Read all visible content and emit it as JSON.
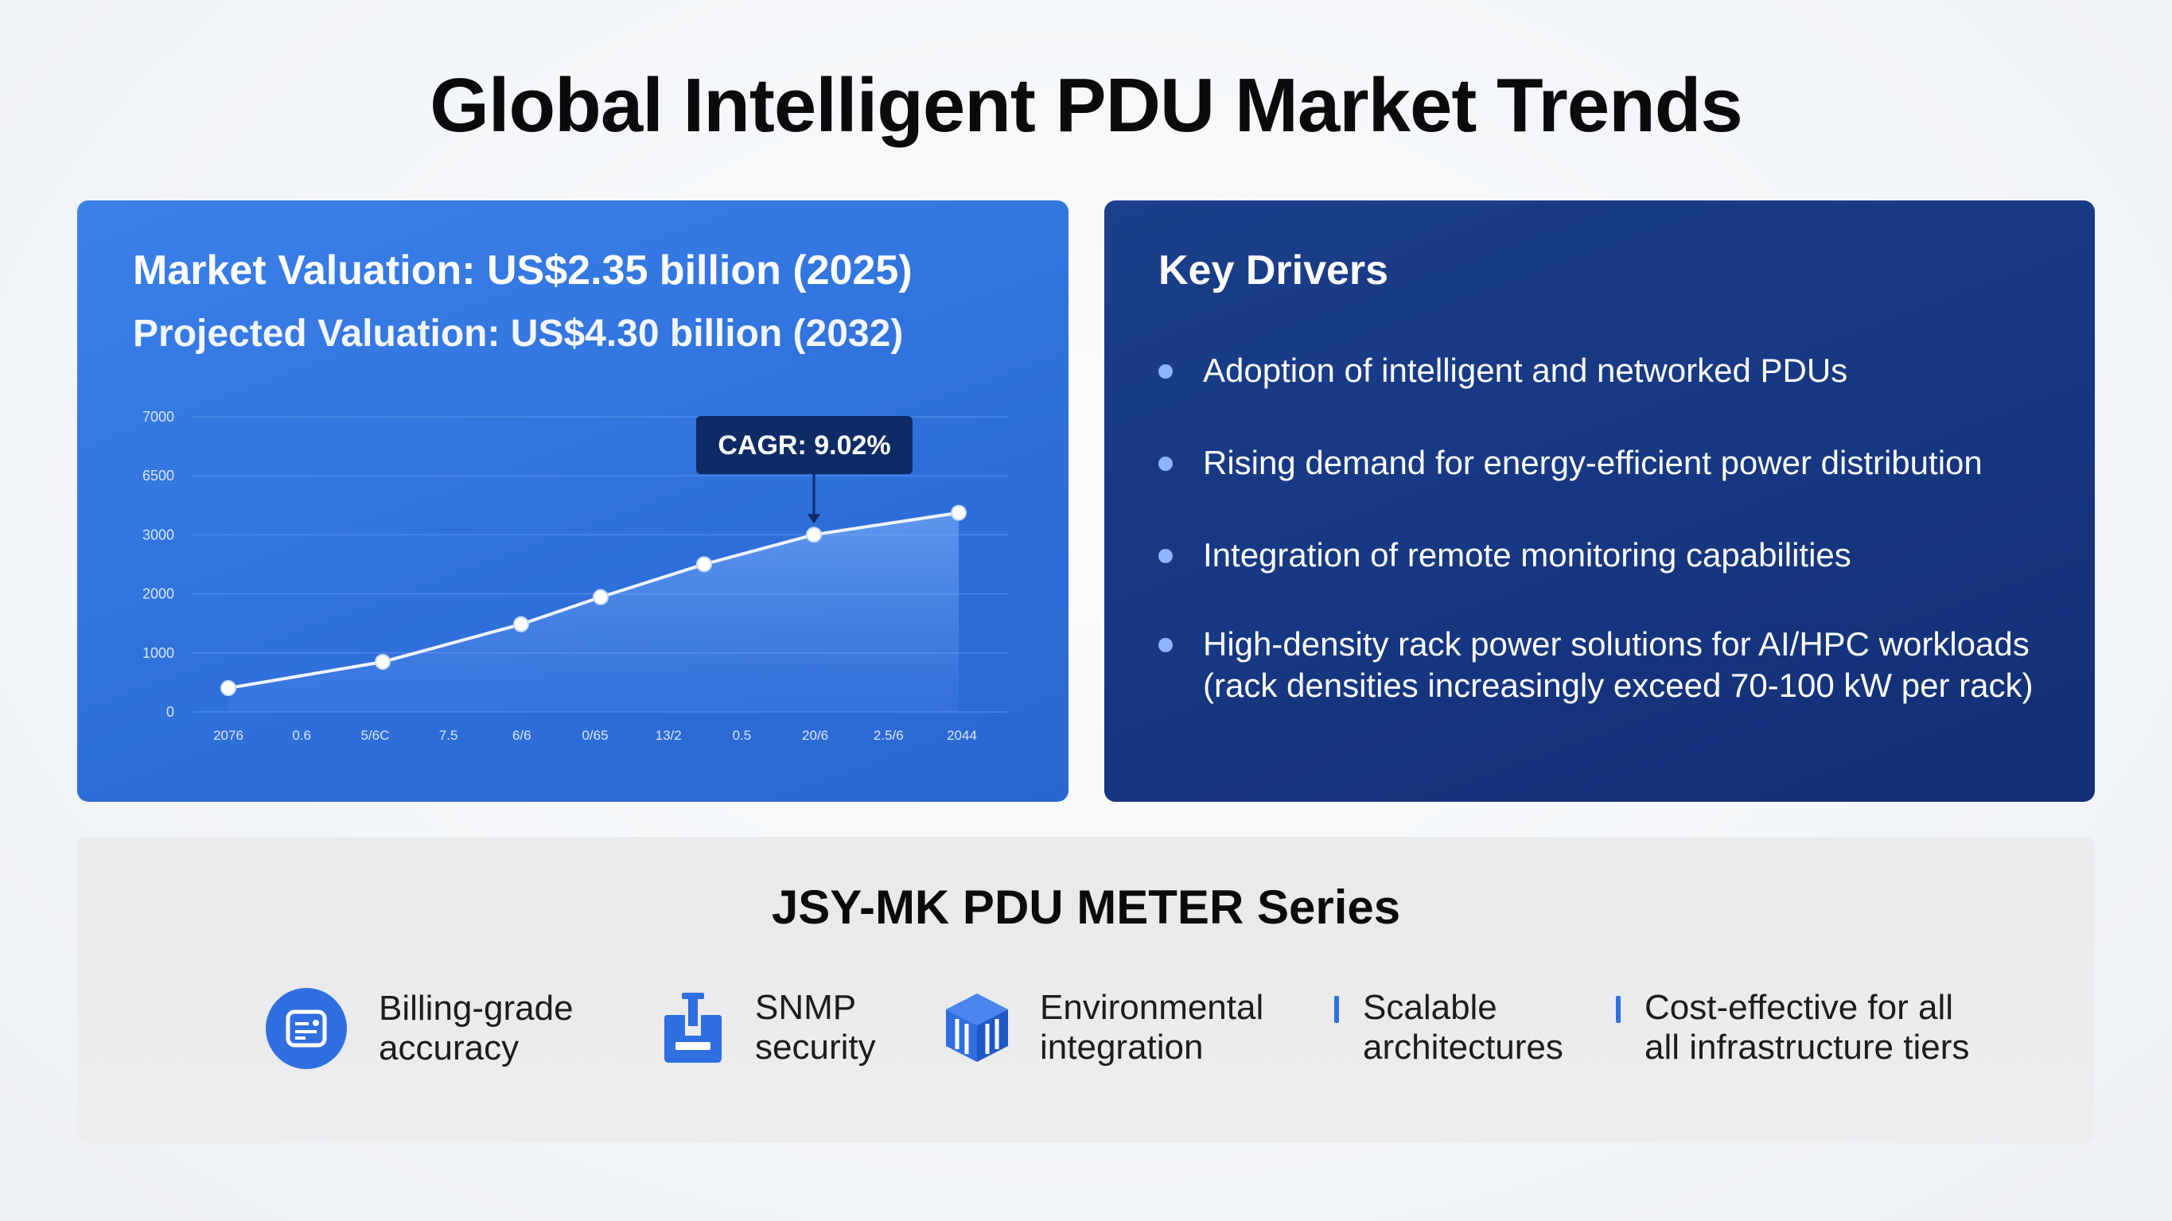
{
  "title": "Global Intelligent PDU Market Trends",
  "market": {
    "valuation": "Market Valuation: US$2.35 billion (2025)",
    "projected": "Projected Valuation: US$4.30 billion (2032)"
  },
  "colors": {
    "accent": "#2f6fe0",
    "left_panel": "#3478e3",
    "right_panel": "#163680",
    "callout": "#0f2b66"
  },
  "chart_data": {
    "type": "line",
    "y_ticks": [
      "7000",
      "6500",
      "3000",
      "2000",
      "1000",
      "0"
    ],
    "x_ticks": [
      "2076",
      "0.6",
      "5/6C",
      "7.5",
      "6/6",
      "0/65",
      "13/2",
      "0.5",
      "20/6",
      "2.5/6",
      "2044"
    ],
    "ylim": [
      0,
      7000
    ],
    "values": [
      500,
      1050,
      1840,
      2410,
      3100,
      3720,
      4180
    ],
    "annotation": "CAGR: 9.02%",
    "grid": true
  },
  "drivers": {
    "title": "Key Drivers",
    "items": [
      "Adoption of intelligent and networked PDUs",
      "Rising demand for energy-efficient power distribution",
      "Integration of remote monitoring capabilities",
      "High-density rack power solutions for AI/HPC workloads (rack densities increasingly exceed 70-100 kW per rack)"
    ]
  },
  "series": {
    "title": "JSY-MK PDU METER Series",
    "features": [
      {
        "label_1": "Billing-grade",
        "label_2": "accuracy",
        "icon": "billing-meter-icon"
      },
      {
        "label_1": "SNMP",
        "label_2": "security",
        "icon": "network-security-icon"
      },
      {
        "label_1": "Environmental",
        "label_2": "integration",
        "icon": "cube-integration-icon"
      },
      {
        "label_1": "Scalable",
        "label_2": "architectures",
        "icon": "bar-marker"
      },
      {
        "label_1": "Cost-effective for all",
        "label_2": "all infrastructure tiers",
        "icon": "bar-marker"
      }
    ]
  }
}
